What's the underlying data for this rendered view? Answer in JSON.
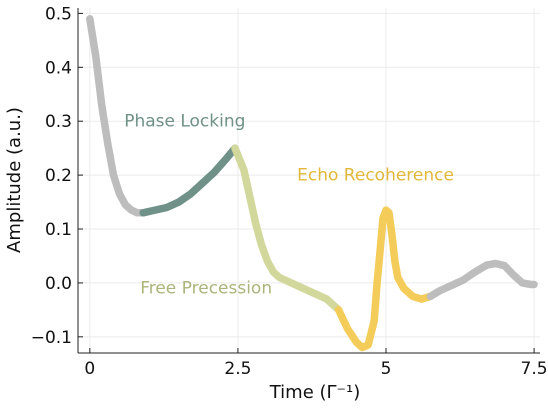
{
  "chart_data": {
    "type": "line",
    "title": "",
    "xlabel": "Time (Γ⁻¹)",
    "ylabel": "Amplitude (a.u.)",
    "xlim": [
      -0.2,
      7.6
    ],
    "ylim": [
      -0.13,
      0.51
    ],
    "xticks": [
      0,
      2.5,
      5,
      7.5
    ],
    "xtick_labels": [
      "0",
      "2.5",
      "5",
      "7.5"
    ],
    "yticks": [
      -0.1,
      0.0,
      0.1,
      0.2,
      0.3,
      0.4,
      0.5
    ],
    "ytick_labels": [
      "−0.1",
      "0.0",
      "0.1",
      "0.2",
      "0.3",
      "0.4",
      "0.5"
    ],
    "grid": true,
    "legend": "none",
    "series": [
      {
        "color": "#bdbdbd",
        "x": [
          0,
          0.1,
          0.2,
          0.3,
          0.4,
          0.5,
          0.6,
          0.7,
          0.8,
          0.9
        ],
        "y": [
          0.49,
          0.42,
          0.33,
          0.26,
          0.2,
          0.165,
          0.145,
          0.135,
          0.13,
          0.13
        ]
      },
      {
        "color": "#6f9188",
        "x": [
          0.9,
          1.1,
          1.3,
          1.5,
          1.7,
          1.9,
          2.1,
          2.3,
          2.45
        ],
        "y": [
          0.13,
          0.135,
          0.14,
          0.15,
          0.165,
          0.185,
          0.205,
          0.23,
          0.25
        ]
      },
      {
        "color": "#d2d79b",
        "x": [
          2.45,
          2.6,
          2.7,
          2.8,
          2.9,
          3.0,
          3.1,
          3.2,
          3.4,
          3.6,
          3.8,
          4.0,
          4.2
        ],
        "y": [
          0.25,
          0.21,
          0.16,
          0.11,
          0.07,
          0.04,
          0.02,
          0.01,
          0.0,
          -0.01,
          -0.02,
          -0.03,
          -0.05
        ]
      },
      {
        "color": "#f4cc5a",
        "x": [
          4.2,
          4.35,
          4.5,
          4.6,
          4.7,
          4.8,
          4.85,
          4.9,
          4.95,
          5.0,
          5.05,
          5.1,
          5.15,
          5.2,
          5.3,
          5.45,
          5.6,
          5.75
        ],
        "y": [
          -0.05,
          -0.085,
          -0.11,
          -0.12,
          -0.115,
          -0.07,
          0.0,
          0.06,
          0.12,
          0.135,
          0.13,
          0.09,
          0.04,
          0.01,
          -0.01,
          -0.025,
          -0.03,
          -0.025
        ]
      },
      {
        "color": "#bdbdbd",
        "x": [
          5.75,
          5.9,
          6.1,
          6.3,
          6.5,
          6.7,
          6.85,
          7.0,
          7.15,
          7.3,
          7.45,
          7.5
        ],
        "y": [
          -0.025,
          -0.015,
          -0.005,
          0.005,
          0.02,
          0.033,
          0.036,
          0.032,
          0.015,
          0.0,
          -0.003,
          -0.003
        ]
      }
    ],
    "annotations": [
      {
        "text": "Phase Locking",
        "x": 0.58,
        "y": 0.29,
        "color": "#6f9188"
      },
      {
        "text": "Echo Recoherence",
        "x": 3.5,
        "y": 0.19,
        "color": "#e3b83a"
      },
      {
        "text": "Free Precession",
        "x": 0.85,
        "y": -0.02,
        "color": "#aab57a"
      }
    ]
  }
}
